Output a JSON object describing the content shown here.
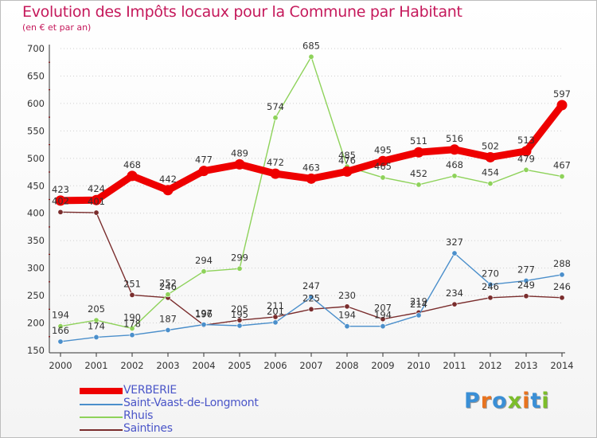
{
  "title": "Evolution des Impôts locaux pour la Commune par Habitant",
  "subtitle": "(en € et par an)",
  "logo": {
    "text": "Proxiti",
    "letter_colors": [
      "#3a8fd6",
      "#e8731f",
      "#3a8fd6",
      "#7cbd2a",
      "#e8731f",
      "#3a8fd6",
      "#7cbd2a"
    ]
  },
  "chart_data": {
    "type": "line",
    "title": "Evolution des Impôts locaux pour la Commune par Habitant",
    "subtitle": "(en € et par an)",
    "xlabel": "",
    "ylabel": "",
    "x": [
      "2000",
      "2001",
      "2002",
      "2003",
      "2004",
      "2005",
      "2006",
      "2007",
      "2008",
      "2009",
      "2010",
      "2011",
      "2012",
      "2013",
      "2014"
    ],
    "ylim": [
      150,
      700
    ],
    "yticks": [
      150,
      200,
      250,
      300,
      350,
      400,
      450,
      500,
      550,
      600,
      650,
      700
    ],
    "grid": "horizontal dotted",
    "legend_position": "bottom-left",
    "series": [
      {
        "name": "VERBERIE",
        "color": "#ee0000",
        "values": [
          423,
          424,
          468,
          442,
          477,
          489,
          472,
          463,
          476,
          495,
          511,
          516,
          502,
          513,
          597
        ]
      },
      {
        "name": "Saint-Vaast-de-Longmont",
        "color": "#4b8fcb",
        "values": [
          166,
          174,
          178,
          187,
          197,
          195,
          201,
          247,
          194,
          194,
          214,
          327,
          270,
          277,
          288
        ]
      },
      {
        "name": "Rhuis",
        "color": "#8ed25a",
        "values": [
          194,
          205,
          190,
          252,
          294,
          299,
          574,
          685,
          485,
          465,
          452,
          468,
          454,
          479,
          467
        ]
      },
      {
        "name": "Saintines",
        "color": "#7a2d2d",
        "values": [
          402,
          401,
          251,
          246,
          196,
          205,
          211,
          225,
          230,
          207,
          219,
          234,
          246,
          249,
          246
        ]
      }
    ]
  }
}
